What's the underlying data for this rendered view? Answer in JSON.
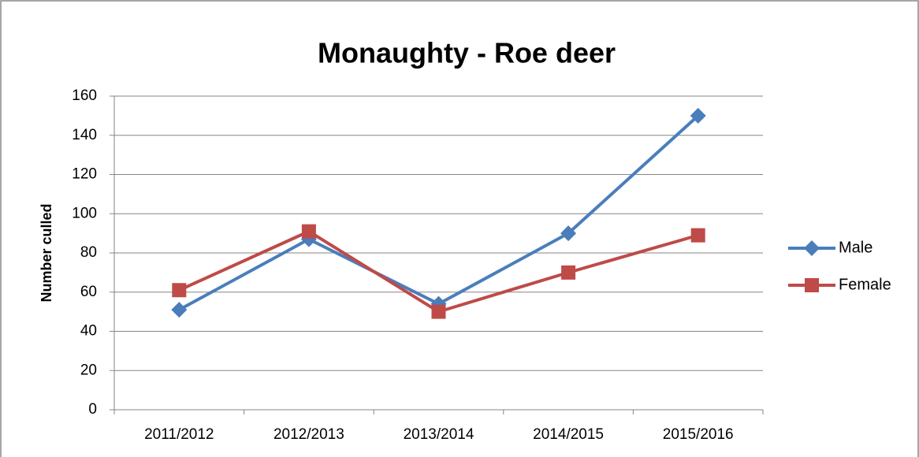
{
  "chart_data": {
    "type": "line",
    "title": "Monaughty - Roe deer",
    "ylabel": "Number culled",
    "categories": [
      "2011/2012",
      "2012/2013",
      "2013/2014",
      "2014/2015",
      "2015/2016"
    ],
    "series": [
      {
        "name": "Male",
        "color": "#4a7ebb",
        "marker": "diamond",
        "values": [
          51,
          87,
          54,
          90,
          150
        ]
      },
      {
        "name": "Female",
        "color": "#be4b48",
        "marker": "square",
        "values": [
          61,
          91,
          50,
          70,
          89
        ]
      }
    ],
    "ylim": [
      0,
      160
    ],
    "yticks": [
      0,
      20,
      40,
      60,
      80,
      100,
      120,
      140,
      160
    ],
    "grid": true,
    "legend": "right"
  }
}
